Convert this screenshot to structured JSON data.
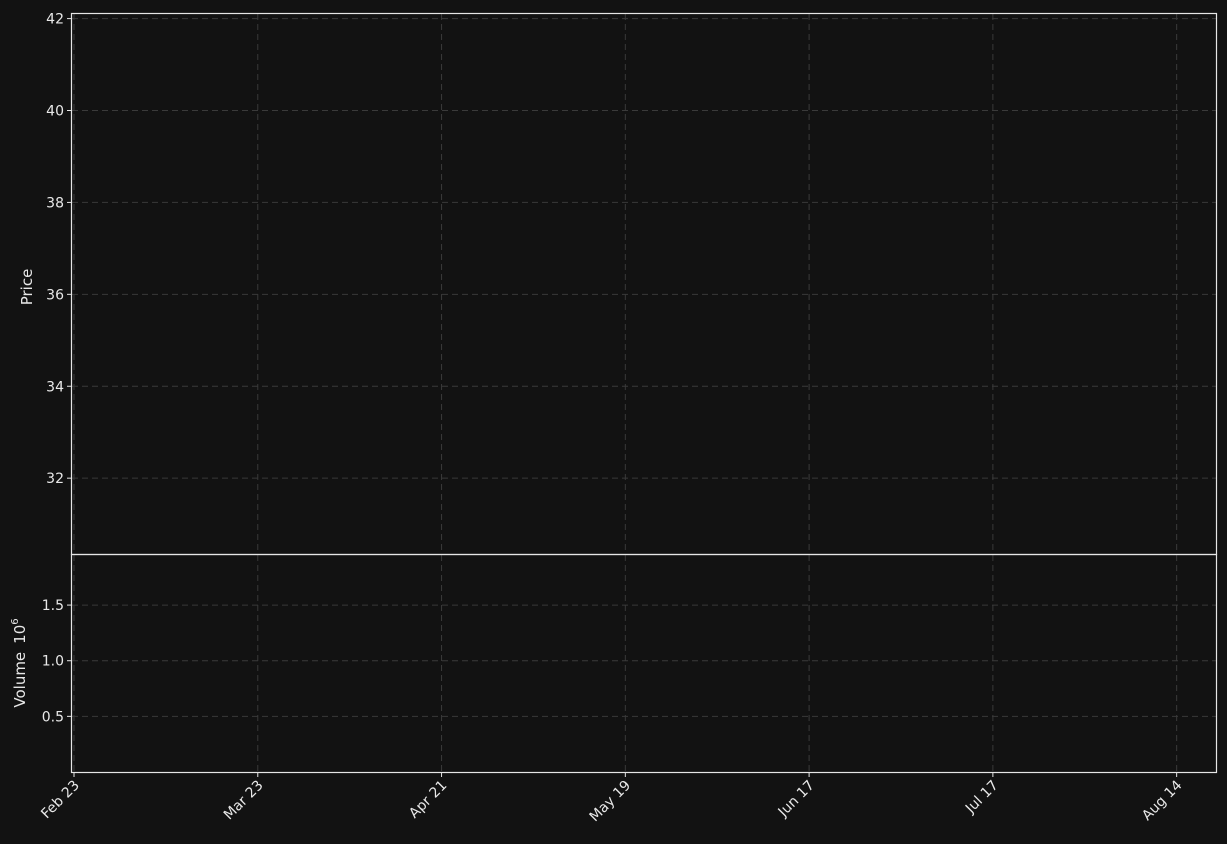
{
  "colors": {
    "background": "#121212",
    "up": "#00f08a",
    "down": "#f04a4f",
    "sma_fast": "#40e0d0",
    "sma_slow": "#00eaff",
    "bollinger": "#ffa500",
    "grid": "#3a3a3a",
    "text": "#e8e8e8"
  },
  "chart_data": {
    "type": "candlestick",
    "xlabel": "",
    "price_panel": {
      "ylabel": "Price",
      "ylim": [
        30.35,
        42.1
      ],
      "yticks": [
        "32",
        "34",
        "36",
        "38",
        "40",
        "42"
      ]
    },
    "volume_panel": {
      "ylabel": "Volume",
      "ylabel_exponent": "6",
      "ylim": [
        0,
        1.95
      ],
      "yticks": [
        "0.5",
        "1.0",
        "1.5"
      ]
    },
    "xticks": [
      {
        "label": "Feb 23",
        "index": 0
      },
      {
        "label": "Mar 23",
        "index": 20
      },
      {
        "label": "Apr 21",
        "index": 40
      },
      {
        "label": "May 19",
        "index": 60
      },
      {
        "label": "Jun 17",
        "index": 80
      },
      {
        "label": "Jul 17",
        "index": 100
      },
      {
        "label": "Aug 14",
        "index": 120
      }
    ],
    "legend": "none",
    "grid": true
  }
}
